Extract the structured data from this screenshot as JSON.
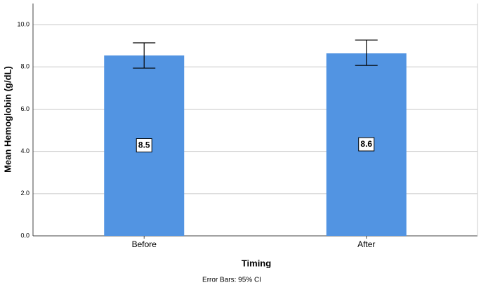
{
  "chart_data": {
    "type": "bar",
    "categories": [
      "Before",
      "After"
    ],
    "values": [
      8.54,
      8.64
    ],
    "value_labels": [
      "8.5",
      "8.6"
    ],
    "error_low": [
      7.94,
      8.07
    ],
    "error_high": [
      9.14,
      9.27
    ],
    "color": "#5294e2",
    "xlabel": "Timing",
    "ylabel": "Mean Hemoglobin (g/dL)",
    "footnote": "Error Bars: 95% CI",
    "ylim": [
      0,
      11
    ],
    "yticks": [
      {
        "value": 0,
        "label": "0.0"
      },
      {
        "value": 2,
        "label": "2.0"
      },
      {
        "value": 4,
        "label": "4.0"
      },
      {
        "value": 6,
        "label": "6.0"
      },
      {
        "value": 8,
        "label": "8.0"
      },
      {
        "value": 10,
        "label": "10.0"
      }
    ],
    "grid": true
  }
}
